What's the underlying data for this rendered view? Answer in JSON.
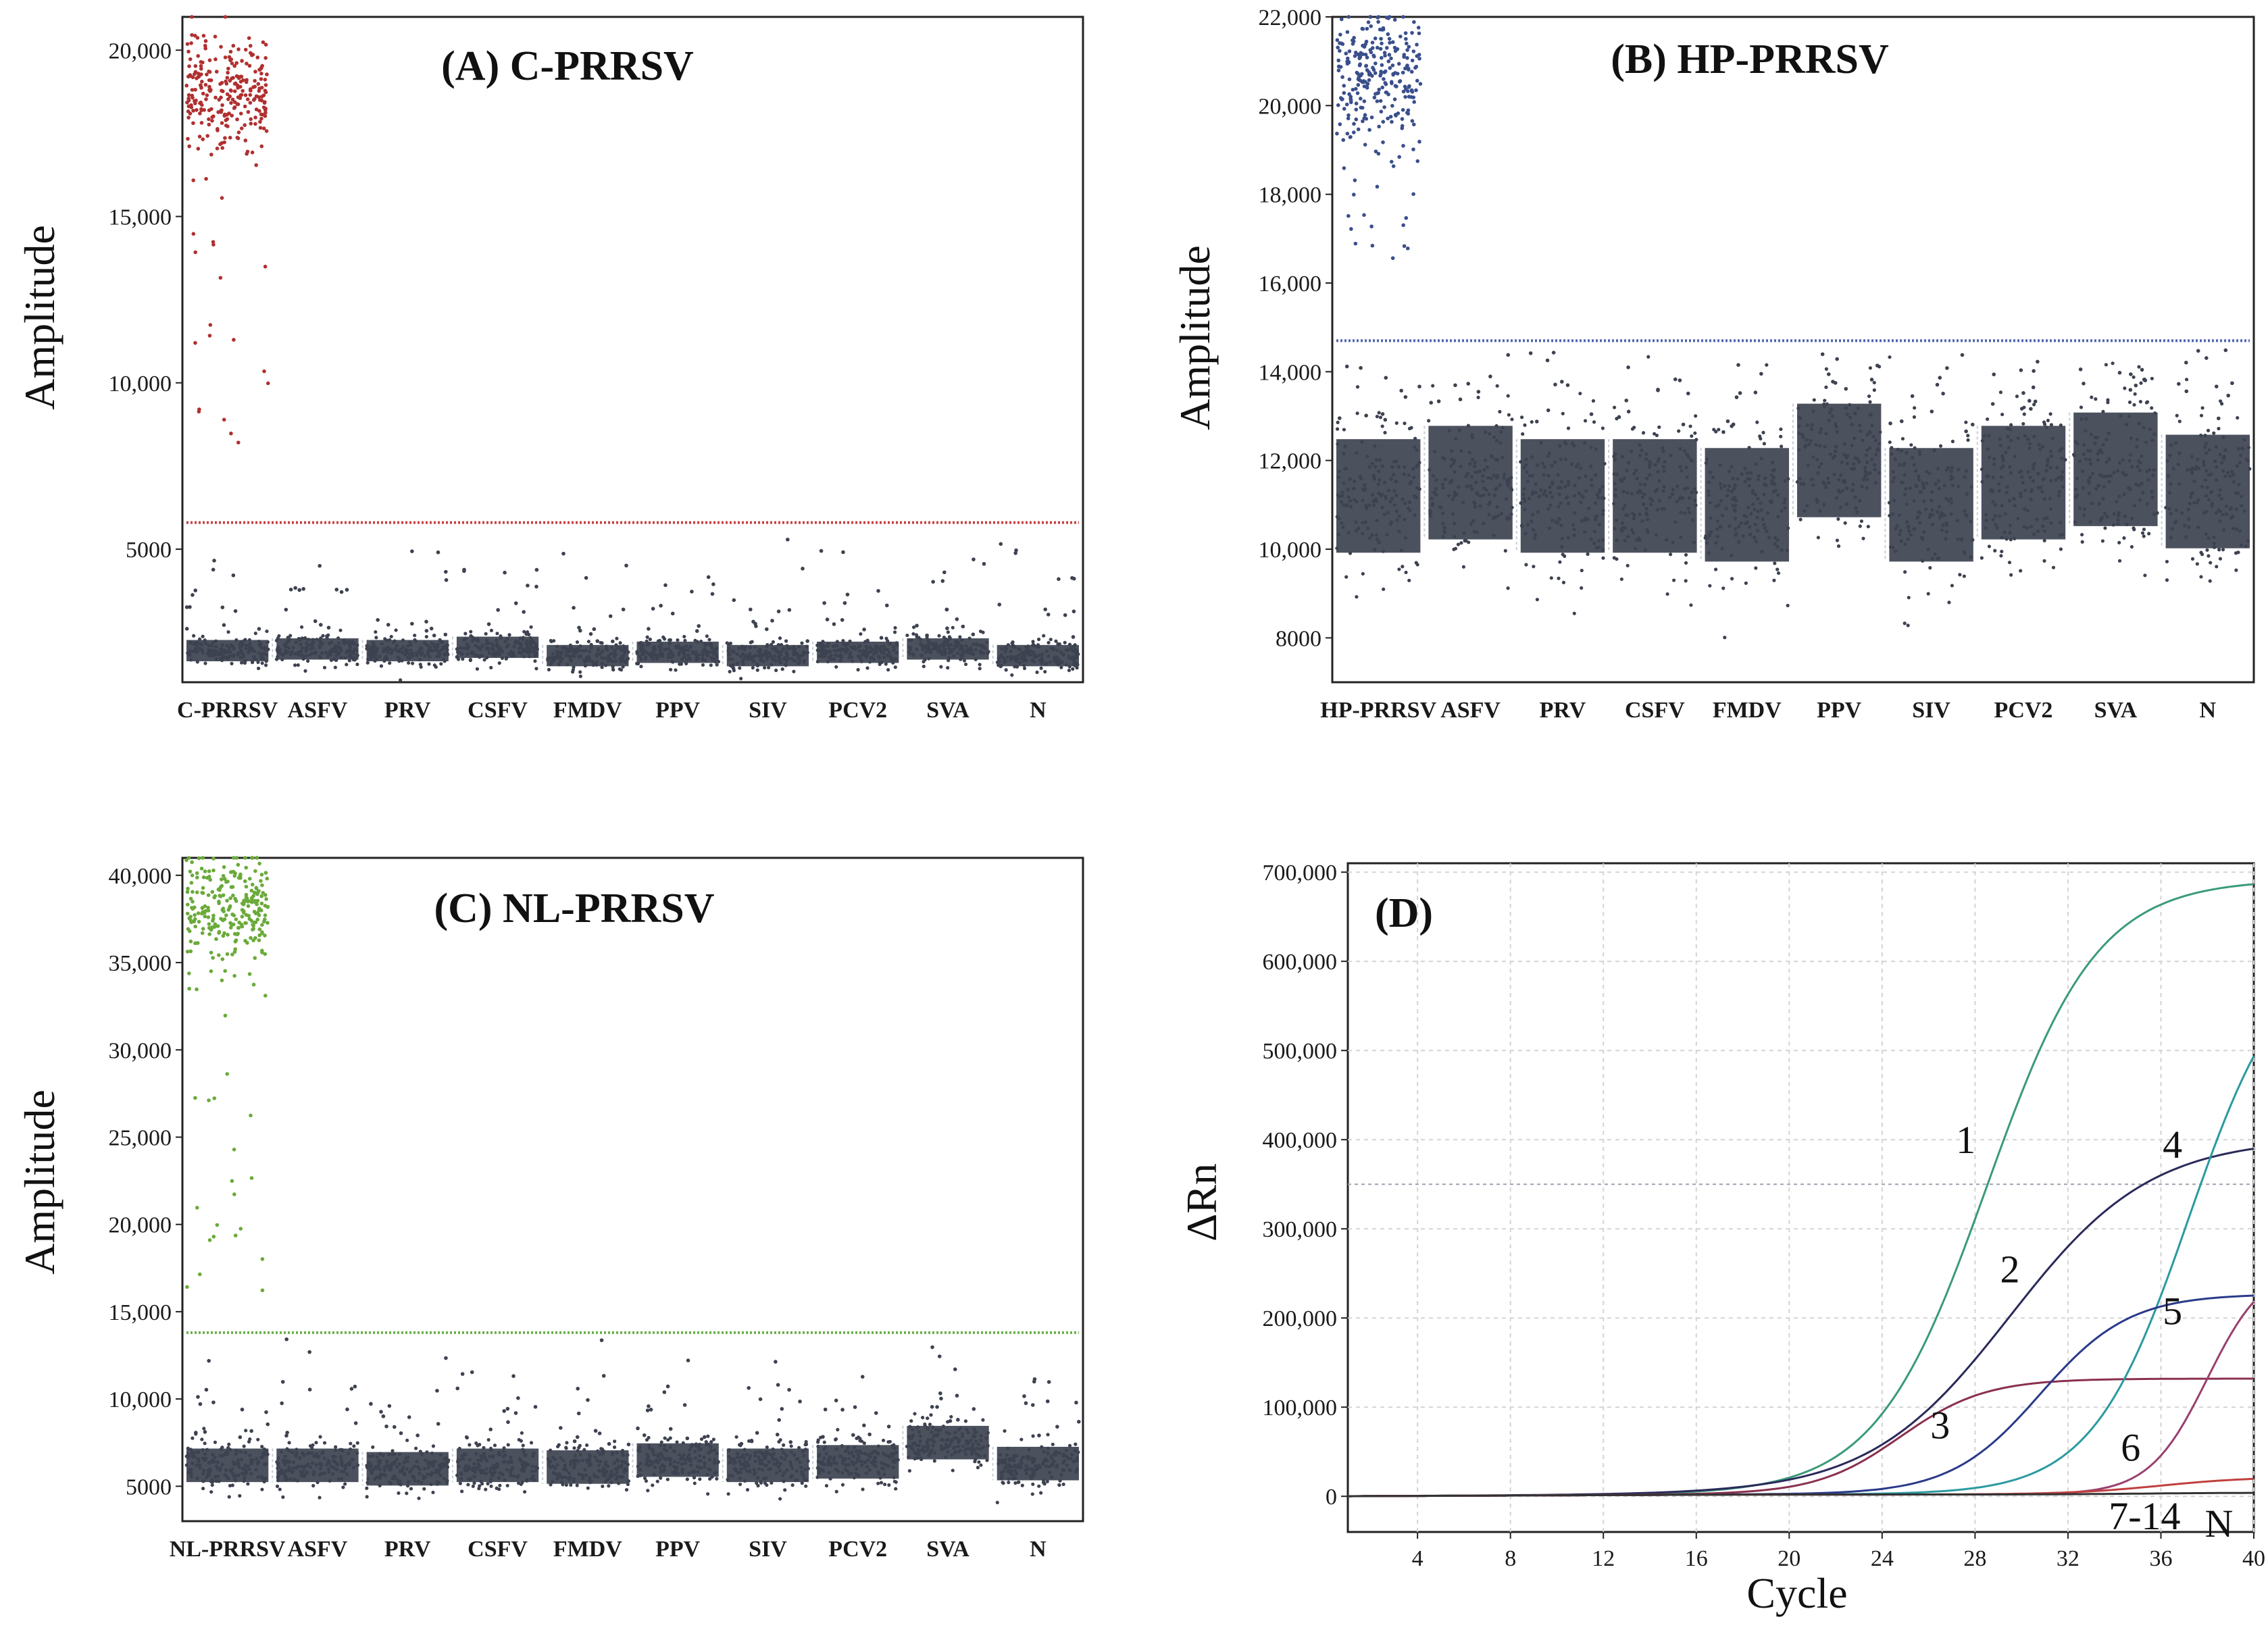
{
  "chart_data": [
    {
      "id": "A",
      "type": "scatter",
      "title": "(A) C-PRRSV",
      "xlabel": "",
      "ylabel": "Amplitude",
      "ylim": [
        1000,
        21000
      ],
      "yticks": [
        5000,
        10000,
        15000,
        20000
      ],
      "ytick_labels": [
        "5000",
        "10,000",
        "15,000",
        "20,000"
      ],
      "categories": [
        "C-PRRSV",
        "ASFV",
        "PRV",
        "CSFV",
        "FMDV",
        "PPV",
        "SIV",
        "PCV2",
        "SVA",
        "N"
      ],
      "threshold": 5800,
      "positive_color": "#b03030",
      "negative_color": "#3d4250",
      "threshold_color": "#c84040",
      "series": [
        {
          "name": "positive droplets",
          "category": "C-PRRSV",
          "center": 18800,
          "spread": 800
        },
        {
          "name": "negative droplets",
          "centers": [
            1950,
            2000,
            1950,
            2050,
            1800,
            1900,
            1800,
            1900,
            2000,
            1800
          ],
          "spread": 200
        }
      ]
    },
    {
      "id": "B",
      "type": "scatter",
      "title": "(B) HP-PRRSV",
      "xlabel": "",
      "ylabel": "Amplitude",
      "ylim": [
        7000,
        22000
      ],
      "yticks": [
        8000,
        10000,
        12000,
        14000,
        16000,
        18000,
        20000,
        22000
      ],
      "ytick_labels": [
        "8000",
        "10,000",
        "12,000",
        "14,000",
        "16,000",
        "18,000",
        "20,000",
        "22,000"
      ],
      "categories": [
        "HP-PRRSV",
        "ASFV",
        "PRV",
        "CSFV",
        "FMDV",
        "PPV",
        "SIV",
        "PCV2",
        "SVA",
        "N"
      ],
      "threshold": 14700,
      "positive_color": "#3a4f8c",
      "negative_color": "#3d4250",
      "threshold_color": "#5063b0",
      "series": [
        {
          "name": "positive droplets",
          "category": "HP-PRRSV",
          "center": 20700,
          "spread": 700
        },
        {
          "name": "negative droplets",
          "centers": [
            11200,
            11500,
            11200,
            11200,
            11000,
            12000,
            11000,
            11500,
            11800,
            11300
          ],
          "spread": 800
        }
      ]
    },
    {
      "id": "C",
      "type": "scatter",
      "title": "(C) NL-PRRSV",
      "xlabel": "",
      "ylabel": "Amplitude",
      "ylim": [
        3000,
        41000
      ],
      "yticks": [
        5000,
        10000,
        15000,
        20000,
        25000,
        30000,
        35000,
        40000
      ],
      "ytick_labels": [
        "5000",
        "10,000",
        "15,000",
        "20,000",
        "25,000",
        "30,000",
        "35,000",
        "40,000"
      ],
      "categories": [
        "NL-PRRSV",
        "ASFV",
        "PRV",
        "CSFV",
        "FMDV",
        "PPV",
        "SIV",
        "PCV2",
        "SVA",
        "N"
      ],
      "threshold": 13800,
      "positive_color": "#6aaa3a",
      "negative_color": "#3d4250",
      "threshold_color": "#6ab04a",
      "series": [
        {
          "name": "positive droplets",
          "category": "NL-PRRSV",
          "center": 38000,
          "spread": 1500
        },
        {
          "name": "negative droplets",
          "centers": [
            6200,
            6200,
            6000,
            6200,
            6100,
            6500,
            6200,
            6400,
            7500,
            6300
          ],
          "spread": 600
        }
      ]
    },
    {
      "id": "D",
      "type": "line",
      "title": "(D)",
      "xlabel": "Cycle",
      "ylabel": "ΔRn",
      "xlim": [
        1,
        40
      ],
      "ylim": [
        -40000,
        710000
      ],
      "xticks": [
        4,
        8,
        12,
        16,
        20,
        24,
        28,
        32,
        36,
        40
      ],
      "yticks": [
        0,
        100000,
        200000,
        300000,
        400000,
        500000,
        600000,
        700000
      ],
      "ytick_labels": [
        "0",
        "100,000",
        "200,000",
        "300,000",
        "400,000",
        "500,000",
        "600,000",
        "700,000"
      ],
      "threshold": 350000,
      "series": [
        {
          "name": "1",
          "label": "1",
          "color": "#3a9a7a",
          "top": 690000,
          "midpoint": 28.5,
          "slope": 0.42,
          "label_at": [
            27.6,
            400000
          ]
        },
        {
          "name": "2",
          "label": "2",
          "color": "#2a2a5a",
          "top": 400000,
          "midpoint": 29.5,
          "slope": 0.33,
          "label_at": [
            29.5,
            255000
          ]
        },
        {
          "name": "3",
          "label": "3",
          "color": "#8a3050",
          "top": 130000,
          "midpoint": 24.8,
          "slope": 0.55,
          "label_at": [
            26.5,
            80000
          ]
        },
        {
          "name": "4",
          "label": "4",
          "color": "#2a9aa0",
          "top": 620000,
          "midpoint": 37.2,
          "slope": 0.48,
          "label_at": [
            36.5,
            395000
          ]
        },
        {
          "name": "5",
          "label": "5",
          "color": "#2a3a8a",
          "top": 225000,
          "midpoint": 30.8,
          "slope": 0.52,
          "label_at": [
            36.5,
            208000
          ]
        },
        {
          "name": "6",
          "label": "6",
          "color": "#9a4070",
          "top": 260000,
          "midpoint": 38.0,
          "slope": 0.8,
          "label_at": [
            34.7,
            55000
          ]
        },
        {
          "name": "7-14",
          "label": "7-14",
          "color": "#c04040",
          "top": 20000,
          "midpoint": 36,
          "slope": 0.5,
          "label_at": [
            35.3,
            -22000
          ]
        },
        {
          "name": "N",
          "label": "N",
          "color": "#333333",
          "top": 2000,
          "midpoint": 35,
          "slope": 0.5,
          "label_at": [
            38.5,
            -30000
          ]
        }
      ]
    }
  ]
}
